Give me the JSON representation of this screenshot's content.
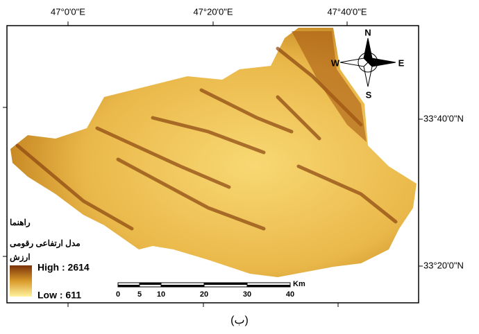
{
  "grid_labels": {
    "top": [
      "47°0'0\"E",
      "47°20'0\"E",
      "47°40'0\"E"
    ],
    "right": [
      "33°40'0\"N",
      "33°20'0\"N"
    ]
  },
  "compass": {
    "north": "N",
    "south": "S",
    "east": "E",
    "west": "W"
  },
  "legend": {
    "title": "راهنما",
    "layer": "مدل ارتفاعی رقومی",
    "field": "ارزش",
    "high": "High : 2614",
    "low": "Low : 611"
  },
  "scale_bar": {
    "unit": "Km",
    "ticks": [
      0,
      5,
      10,
      20,
      30,
      40
    ]
  },
  "caption": "(ب)"
}
